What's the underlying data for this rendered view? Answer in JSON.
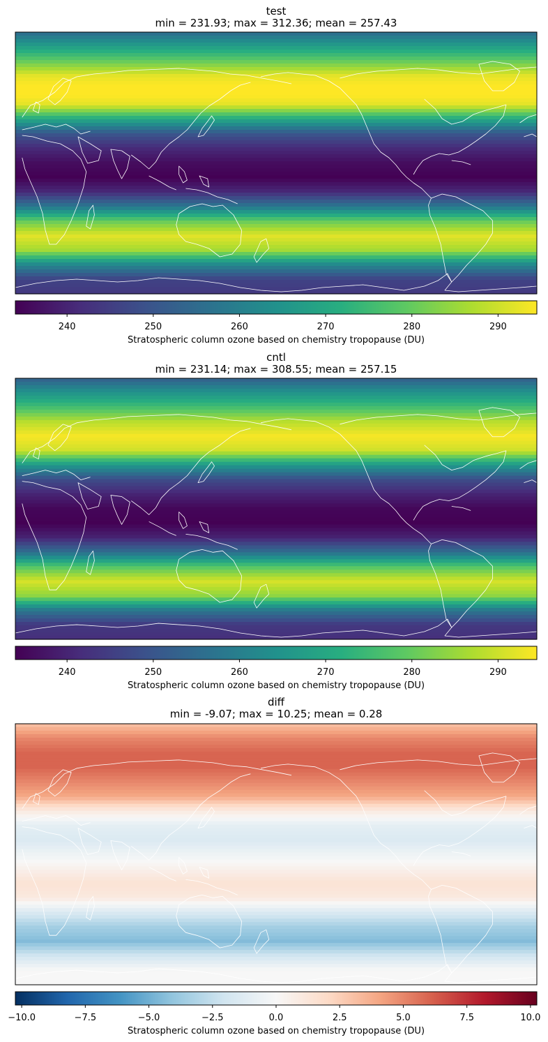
{
  "chart_data": [
    {
      "type": "heatmap",
      "map_projection": "global map, Pacific-centred, white coastlines",
      "title": "test",
      "subtitle": "min = 231.93; max = 312.36; mean = 257.43",
      "colormap": "viridis",
      "colorbar": {
        "label": "Stratospheric column ozone based on chemistry tropopause (DU)",
        "range": [
          234,
          294.5
        ],
        "ticks": [
          240,
          250,
          260,
          270,
          280,
          290
        ],
        "tick_labels": [
          "240",
          "250",
          "260",
          "270",
          "280",
          "290"
        ]
      },
      "stats": {
        "min": 231.93,
        "max": 312.36,
        "mean": 257.43
      },
      "latitude_profile": {
        "lat": [
          90,
          80,
          70,
          60,
          50,
          40,
          30,
          20,
          10,
          0,
          -10,
          -20,
          -30,
          -40,
          -50,
          -60,
          -70,
          -80,
          -90
        ],
        "value": [
          255,
          268,
          280,
          292,
          296,
          292,
          270,
          250,
          241,
          236,
          234,
          241,
          258,
          280,
          292,
          286,
          262,
          246,
          244
        ]
      }
    },
    {
      "type": "heatmap",
      "map_projection": "global map, Pacific-centred, white coastlines",
      "title": "cntl",
      "subtitle": "min = 231.14; max = 308.55; mean = 257.15",
      "colormap": "viridis",
      "colorbar": {
        "label": "Stratospheric column ozone based on chemistry tropopause (DU)",
        "range": [
          234,
          294.5
        ],
        "ticks": [
          240,
          250,
          260,
          270,
          280,
          290
        ],
        "tick_labels": [
          "240",
          "250",
          "260",
          "270",
          "280",
          "290"
        ]
      },
      "stats": {
        "min": 231.14,
        "max": 308.55,
        "mean": 257.15
      },
      "latitude_profile": {
        "lat": [
          90,
          80,
          70,
          60,
          50,
          40,
          30,
          20,
          10,
          0,
          -10,
          -20,
          -30,
          -40,
          -50,
          -60,
          -70,
          -80,
          -90
        ],
        "value": [
          252,
          265,
          276,
          288,
          294,
          290,
          266,
          248,
          240,
          235,
          234,
          240,
          256,
          278,
          291,
          284,
          258,
          244,
          242
        ]
      }
    },
    {
      "type": "heatmap",
      "map_projection": "global map, Pacific-centred, white coastlines",
      "title": "diff",
      "subtitle": "min = -9.07; max = 10.25; mean = 0.28",
      "colormap": "RdBu_r",
      "colorbar": {
        "label": "Stratospheric column ozone based on chemistry tropopause (DU)",
        "range": [
          -10.25,
          10.25
        ],
        "ticks": [
          -10,
          -7.5,
          -5,
          -2.5,
          0,
          2.5,
          5,
          7.5,
          10
        ],
        "tick_labels": [
          "−10.0",
          "−7.5",
          "−5.0",
          "−2.5",
          "0.0",
          "2.5",
          "5.0",
          "7.5",
          "10.0"
        ]
      },
      "stats": {
        "min": -9.07,
        "max": 10.25,
        "mean": 0.28
      },
      "latitude_profile": {
        "lat": [
          90,
          80,
          70,
          60,
          50,
          40,
          30,
          20,
          10,
          0,
          -10,
          -20,
          -30,
          -40,
          -50,
          -60,
          -70,
          -80,
          -90
        ],
        "value": [
          3,
          5,
          6,
          6,
          5,
          4,
          1,
          -1,
          -1.5,
          -0.5,
          0.5,
          1.5,
          1,
          -1.5,
          -3.5,
          -4.5,
          -2,
          0,
          0
        ]
      }
    }
  ]
}
